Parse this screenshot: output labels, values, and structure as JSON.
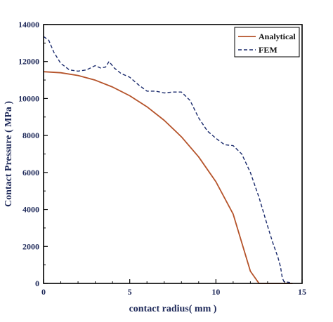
{
  "chart_data": {
    "type": "line",
    "xlabel": "contact radius( mm )",
    "ylabel": "Contact Pressure ( MPa )",
    "xlim": [
      0,
      15
    ],
    "ylim": [
      0,
      14000
    ],
    "x_ticks": [
      0,
      5,
      10,
      15
    ],
    "y_ticks": [
      0,
      2000,
      4000,
      6000,
      8000,
      10000,
      12000,
      14000
    ],
    "grid": false,
    "legend_position": "top-right",
    "series": [
      {
        "name": "Analytical",
        "color": "#b5532a",
        "style": "solid",
        "x": [
          0,
          1,
          2,
          3,
          4,
          5,
          6,
          7,
          8,
          9,
          10,
          11,
          12,
          12.5,
          13,
          13.5,
          13.8,
          13.95,
          14.05,
          14.25,
          14.45
        ],
        "y": [
          11450,
          11395,
          11245,
          10990,
          10625,
          10150,
          9555,
          8820,
          7925,
          6840,
          5500,
          3750,
          660,
          0,
          0,
          0,
          0,
          0,
          0,
          0,
          0
        ]
      },
      {
        "name": "FEM",
        "color": "#1a2a6c",
        "style": "dashed",
        "x": [
          0,
          0.3,
          0.6,
          1,
          1.5,
          2,
          2.5,
          3,
          3.3,
          3.6,
          3.8,
          4.1,
          4.5,
          5,
          5.5,
          6,
          6.5,
          7,
          7.5,
          8,
          8.5,
          9,
          9.5,
          10,
          10.5,
          11,
          11.5,
          12,
          12.5,
          13,
          13.3,
          13.6,
          13.75,
          13.85,
          13.95,
          14.05,
          14.3
        ],
        "y": [
          13350,
          13150,
          12500,
          11900,
          11550,
          11480,
          11550,
          11780,
          11650,
          11700,
          12000,
          11650,
          11350,
          11150,
          10750,
          10400,
          10400,
          10300,
          10350,
          10350,
          9900,
          8950,
          8250,
          7850,
          7500,
          7450,
          7000,
          6000,
          4650,
          3100,
          2200,
          1400,
          900,
          300,
          100,
          80,
          50
        ]
      }
    ]
  }
}
